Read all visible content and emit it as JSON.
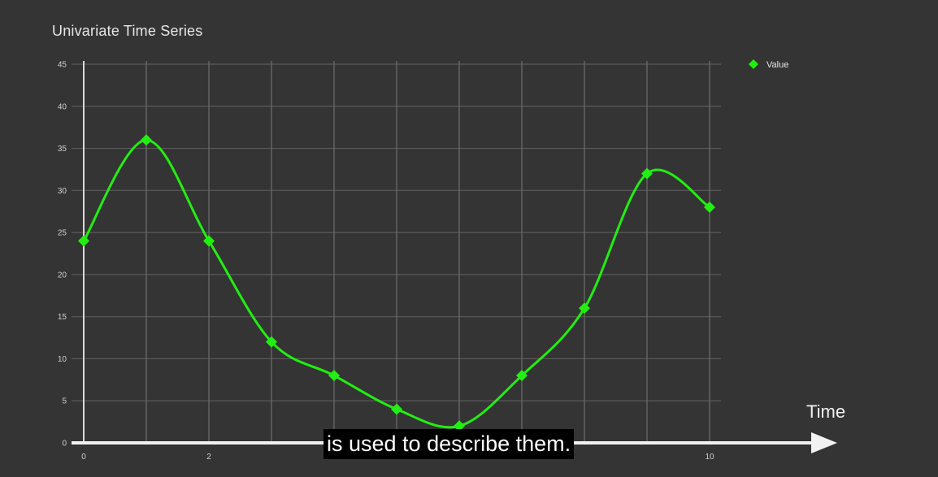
{
  "caption": "is used to describe them.",
  "chart_data": {
    "type": "line",
    "title": "Univariate Time Series",
    "xlabel": "Time",
    "ylabel": "",
    "x": [
      0,
      1,
      2,
      3,
      4,
      5,
      6,
      7,
      8,
      9,
      10
    ],
    "series": [
      {
        "name": "Value",
        "color": "#22ee11",
        "marker": "diamond",
        "values": [
          24,
          36,
          24,
          12,
          8,
          4,
          2,
          8,
          16,
          32,
          28
        ]
      }
    ],
    "xlim": [
      0,
      10
    ],
    "ylim": [
      0,
      45
    ],
    "x_tick_labels": [
      "0",
      "2",
      "10"
    ],
    "x_tick_label_values": [
      0,
      2,
      10
    ],
    "y_ticks": [
      0,
      5,
      10,
      15,
      20,
      25,
      30,
      35,
      40,
      45
    ],
    "grid": true,
    "smooth": true,
    "legend_position": "top-right"
  }
}
